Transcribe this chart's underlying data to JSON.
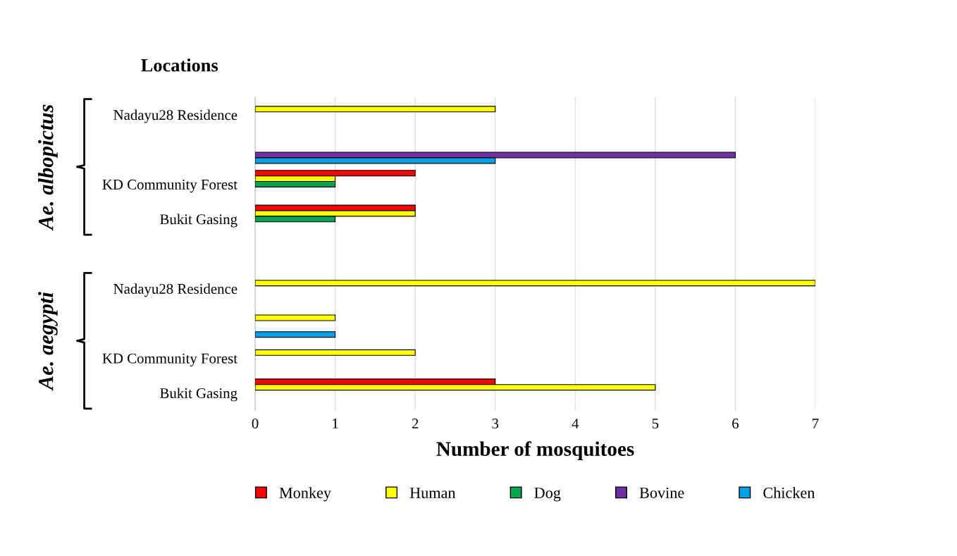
{
  "chart_data": {
    "type": "bar",
    "orientation": "horizontal",
    "ylabel": "Locations",
    "xlabel": "Number of mosquitoes",
    "categories": [
      "Nadayu28 Residence",
      null,
      "KD Community Forest",
      "Bukit Gasing",
      null,
      "Nadayu28 Residence",
      null,
      "KD Community Forest",
      "Bukit Gasing"
    ],
    "series": [
      {
        "name": "Monkey",
        "color": "#ff0000",
        "values": [
          null,
          null,
          2,
          2,
          null,
          null,
          null,
          null,
          3
        ]
      },
      {
        "name": "Human",
        "color": "#ffff00",
        "values": [
          3,
          null,
          1,
          2,
          null,
          7,
          1,
          2,
          5
        ]
      },
      {
        "name": "Dog",
        "color": "#00a550",
        "values": [
          null,
          null,
          1,
          1,
          null,
          null,
          null,
          null,
          null
        ]
      },
      {
        "name": "Bovine",
        "color": "#7030a0",
        "values": [
          null,
          6,
          null,
          null,
          null,
          null,
          null,
          null,
          null
        ]
      },
      {
        "name": "Chicken",
        "color": "#00a0e6",
        "values": [
          null,
          3,
          null,
          null,
          null,
          null,
          1,
          null,
          null
        ]
      }
    ],
    "annotations": [
      "Ae. albopictus",
      "Ae. aegypti"
    ],
    "xlim": [
      0,
      7
    ],
    "xticks": [
      0,
      1,
      2,
      3,
      4,
      5,
      6,
      7
    ],
    "grid": "x",
    "legend": "bottom"
  }
}
